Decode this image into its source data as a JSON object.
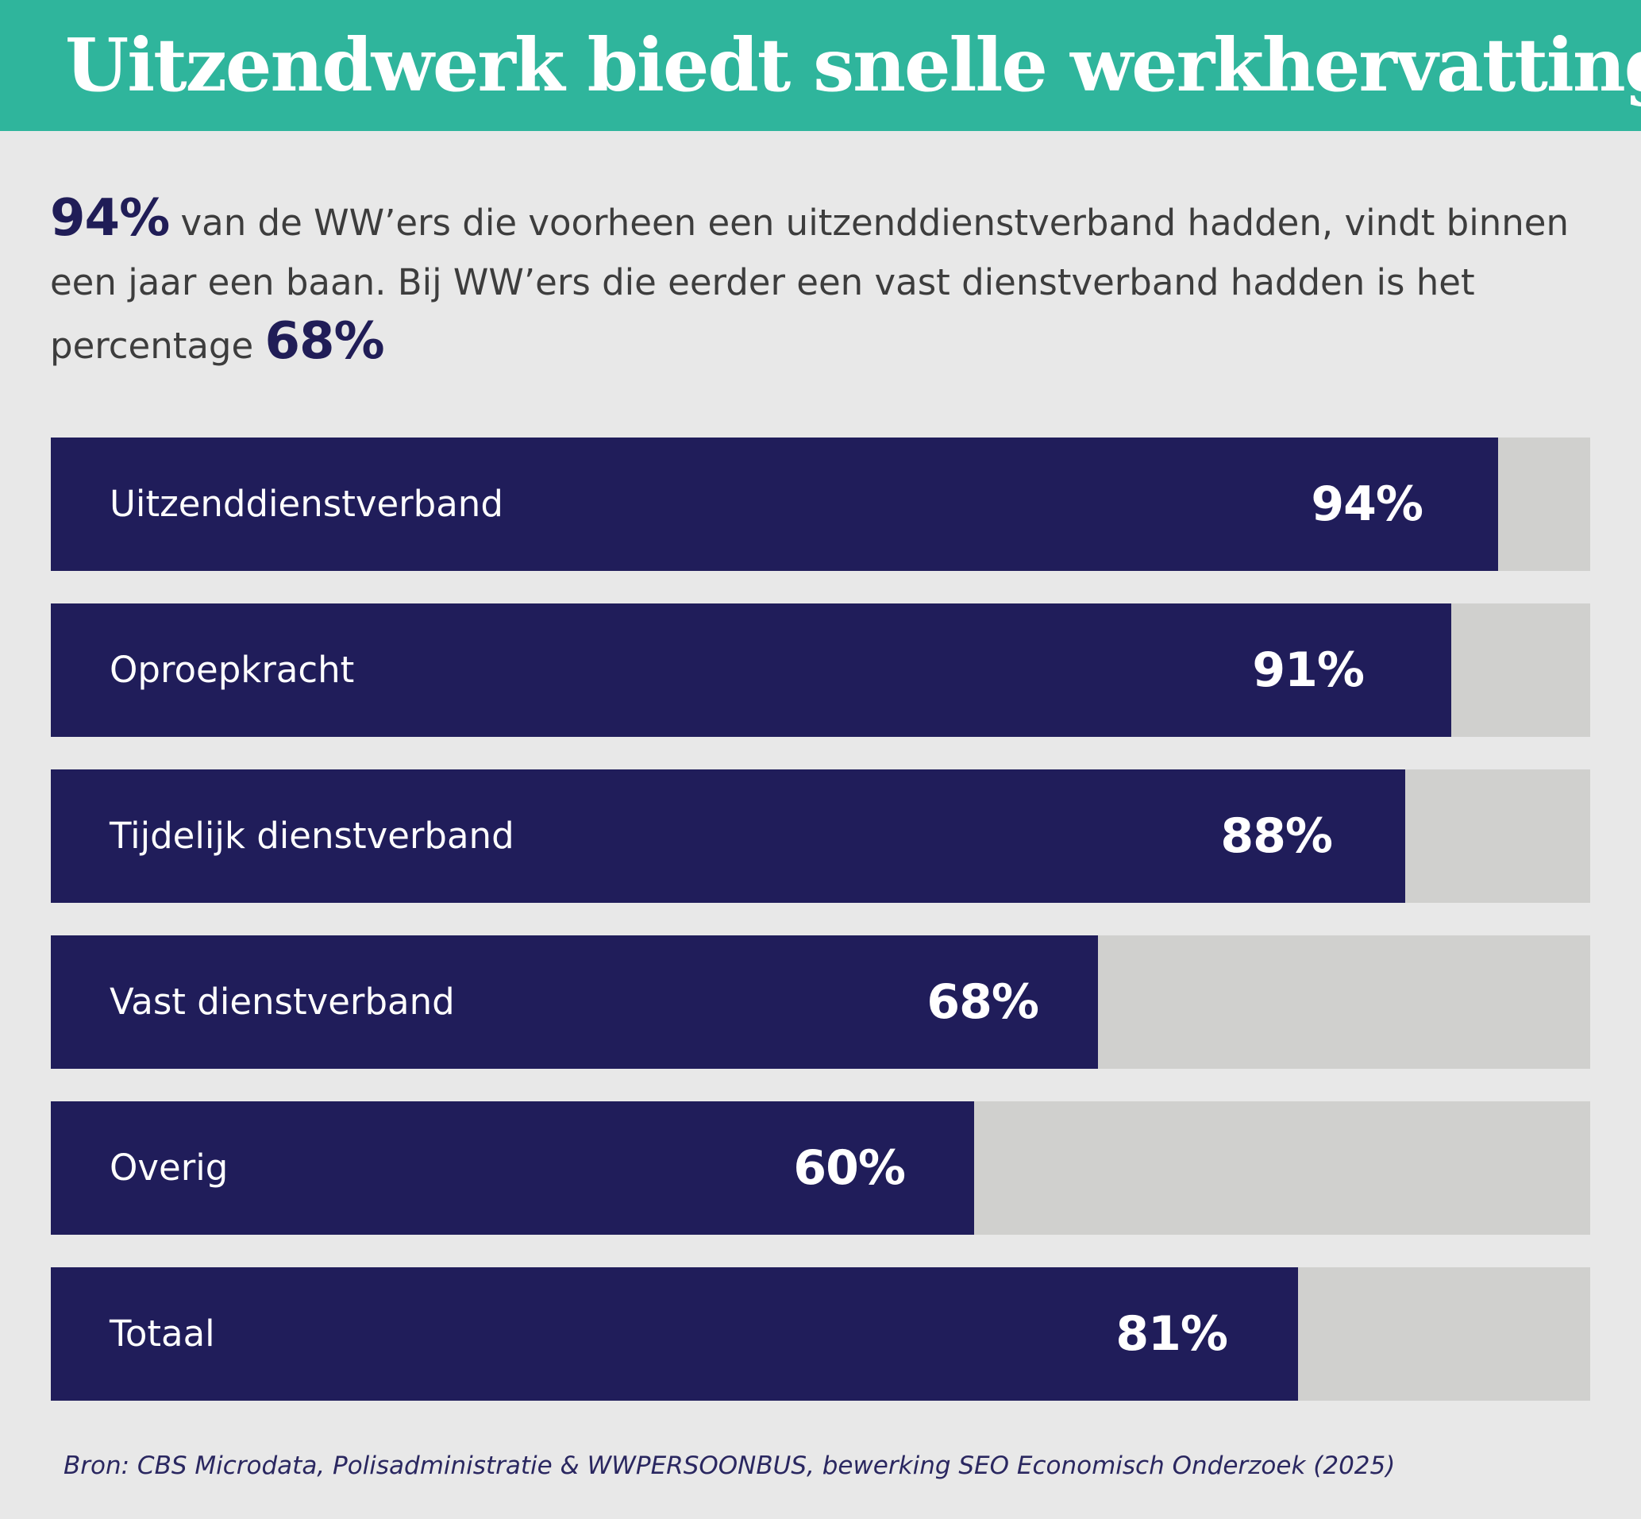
{
  "header": {
    "title": "Uitzendwerk biedt snelle werkhervatting",
    "background_color": "#2fb59c"
  },
  "intro": {
    "highlight_1": "94%",
    "text_1": " van de WW’ers die voorheen een uitzenddienstverband hadden, vindt binnen een jaar een baan. Bij WW’ers die eerder een vast dienstverband hadden is het percentage ",
    "highlight_2": "68%"
  },
  "chart_data": {
    "type": "bar",
    "orientation": "horizontal",
    "title": "Uitzendwerk biedt snelle werkhervatting",
    "xlabel": "",
    "ylabel": "",
    "xlim": [
      0,
      100
    ],
    "unit": "%",
    "categories": [
      "Uitzenddienstverband",
      "Oproepkracht",
      "Tijdelijk dienstverband",
      "Vast dienstverband",
      "Overig",
      "Totaal"
    ],
    "values": [
      94,
      91,
      88,
      68,
      60,
      81
    ],
    "value_labels": [
      "94%",
      "91%",
      "88%",
      "68%",
      "60%",
      "81%"
    ],
    "grid": false,
    "bar_color": "#201d5a",
    "track_color": "#d0d0ce"
  },
  "source": {
    "text": "Bron: CBS Microdata, Polisadministratie & WWPERSOONBUS, bewerking SEO Economisch Onderzoek (2025)"
  }
}
